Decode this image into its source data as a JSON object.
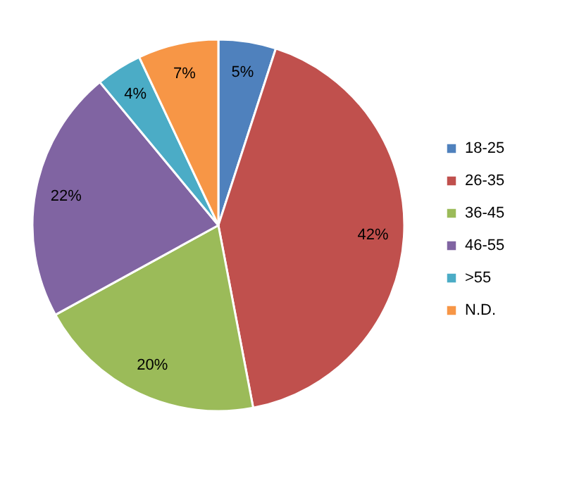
{
  "chart_data": {
    "type": "pie",
    "categories": [
      "18-25",
      "26-35",
      "36-45",
      "46-55",
      ">55",
      "N.D."
    ],
    "values": [
      5,
      42,
      20,
      22,
      4,
      7
    ],
    "colors": [
      "#4f81bd",
      "#c0504d",
      "#9bbb59",
      "#8064a2",
      "#4bacc6",
      "#f79646"
    ],
    "value_labels": [
      "5%",
      "42%",
      "20%",
      "22%",
      "4%",
      "7%"
    ],
    "legend": "right"
  }
}
